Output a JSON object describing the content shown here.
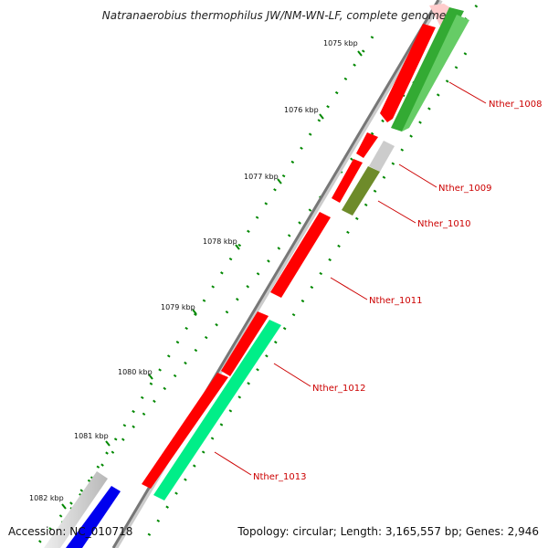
{
  "title": "Natranaerobius thermophilus JW/NM-WN-LF, complete genome",
  "footer": {
    "accession": "Accession: NC_010718",
    "summary": "Topology: circular; Length: 3,165,557 bp; Genes: 2,946"
  },
  "colors": {
    "backbone": "#888888",
    "cds_forward": "#ff0000",
    "cds_reverse": "#ff0000",
    "go_match": "#00ee88",
    "go_match_alt": "#33aa33",
    "go_match_olive": "#6e8b2a",
    "blast_hit": "#0000ee",
    "no_hit": "#cccccc",
    "tick_major": "#008800",
    "tick_minor": "#008800",
    "label": "#cc0000",
    "leader": "#cc0000"
  },
  "scale_ticks": [
    {
      "label": "1075 kbp"
    },
    {
      "label": "1076 kbp"
    },
    {
      "label": "1077 kbp"
    },
    {
      "label": "1078 kbp"
    },
    {
      "label": "1079 kbp"
    },
    {
      "label": "1080 kbp"
    },
    {
      "label": "1081 kbp"
    },
    {
      "label": "1082 kbp"
    }
  ],
  "genes": [
    {
      "name": "Nther_1008"
    },
    {
      "name": "Nther_1009"
    },
    {
      "name": "Nther_1010"
    },
    {
      "name": "Nther_1011"
    },
    {
      "name": "Nther_1012"
    },
    {
      "name": "Nther_1013"
    }
  ]
}
